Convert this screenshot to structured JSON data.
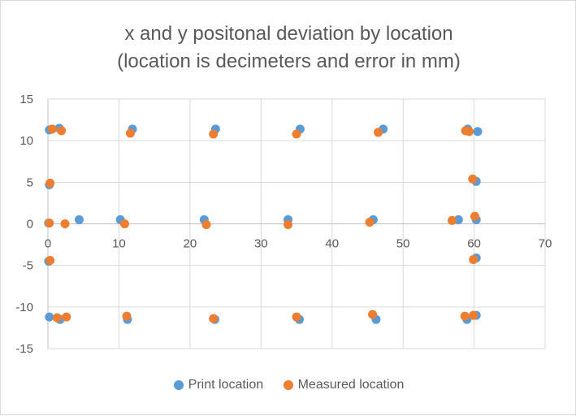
{
  "chart_data": {
    "type": "scatter",
    "title_line1": "x and y positonal deviation by location",
    "title_line2": "(location is decimeters and error in mm)",
    "xlim": [
      0,
      70
    ],
    "ylim": [
      -15,
      15
    ],
    "x_ticks": [
      0,
      10,
      20,
      30,
      40,
      50,
      60,
      70
    ],
    "y_ticks": [
      15,
      10,
      5,
      0,
      -5,
      -10,
      -15
    ],
    "grid": "vertical and horizontal gridlines",
    "legend_position": "bottom",
    "series": [
      {
        "name": "Print location",
        "color": "#5b9bd5",
        "points": [
          [
            0.2,
            11.3
          ],
          [
            1.6,
            11.5
          ],
          [
            11.9,
            11.4
          ],
          [
            23.6,
            11.4
          ],
          [
            35.5,
            11.4
          ],
          [
            47.2,
            11.4
          ],
          [
            59.1,
            11.4
          ],
          [
            60.5,
            11.1
          ],
          [
            0.2,
            4.7
          ],
          [
            60.3,
            5.1
          ],
          [
            0.1,
            0.1
          ],
          [
            4.4,
            0.5
          ],
          [
            10.2,
            0.5
          ],
          [
            22.0,
            0.5
          ],
          [
            33.8,
            0.5
          ],
          [
            45.8,
            0.5
          ],
          [
            57.8,
            0.5
          ],
          [
            60.3,
            0.5
          ],
          [
            0.1,
            -4.5
          ],
          [
            60.3,
            -4.1
          ],
          [
            0.2,
            -11.2
          ],
          [
            1.7,
            -11.5
          ],
          [
            11.2,
            -11.5
          ],
          [
            23.5,
            -11.5
          ],
          [
            35.4,
            -11.5
          ],
          [
            46.2,
            -11.5
          ],
          [
            59.0,
            -11.5
          ],
          [
            60.3,
            -11.0
          ]
        ]
      },
      {
        "name": "Measured location",
        "color": "#ed7d31",
        "points": [
          [
            0.6,
            11.4
          ],
          [
            1.9,
            11.2
          ],
          [
            11.6,
            10.9
          ],
          [
            23.3,
            10.8
          ],
          [
            35.0,
            10.8
          ],
          [
            46.5,
            11.0
          ],
          [
            58.8,
            11.2
          ],
          [
            59.3,
            11.1
          ],
          [
            0.3,
            4.9
          ],
          [
            59.8,
            5.4
          ],
          [
            0.2,
            0.1
          ],
          [
            2.4,
            0.0
          ],
          [
            10.8,
            0.0
          ],
          [
            22.3,
            -0.1
          ],
          [
            33.8,
            -0.1
          ],
          [
            45.3,
            0.2
          ],
          [
            56.9,
            0.4
          ],
          [
            60.1,
            0.9
          ],
          [
            0.3,
            -4.4
          ],
          [
            59.9,
            -4.3
          ],
          [
            1.3,
            -11.3
          ],
          [
            2.6,
            -11.2
          ],
          [
            11.1,
            -11.1
          ],
          [
            23.3,
            -11.4
          ],
          [
            35.0,
            -11.2
          ],
          [
            45.7,
            -10.9
          ],
          [
            58.7,
            -11.1
          ],
          [
            59.9,
            -11.0
          ]
        ]
      }
    ]
  }
}
